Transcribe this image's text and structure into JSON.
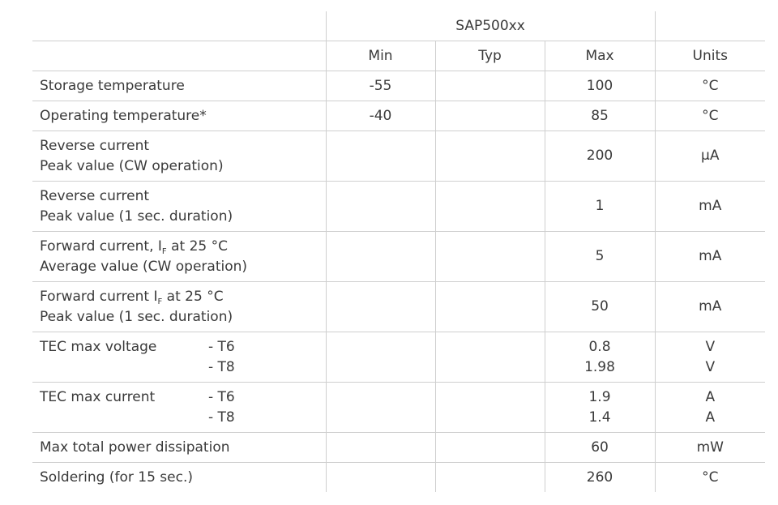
{
  "table": {
    "group_header": "SAP500xx",
    "columns": {
      "min": "Min",
      "typ": "Typ",
      "max": "Max",
      "units": "Units"
    },
    "rows": [
      {
        "param": "Storage temperature",
        "min": "-55",
        "typ": "",
        "max": "100",
        "unit": "°C"
      },
      {
        "param": "Operating temperature*",
        "min": "-40",
        "typ": "",
        "max": "85",
        "unit": "°C"
      },
      {
        "param_line1": "Reverse current",
        "param_line2": "Peak value (CW operation)",
        "min": "",
        "typ": "",
        "max": "200",
        "unit": "μA"
      },
      {
        "param_line1": "Reverse current",
        "param_line2": "Peak value (1 sec. duration)",
        "min": "",
        "typ": "",
        "max": "1",
        "unit": "mA"
      },
      {
        "param_line1_a": "Forward current, I",
        "param_line1_sub": "F",
        "param_line1_b": " at 25 °C",
        "param_line2": "Average value (CW operation)",
        "min": "",
        "typ": "",
        "max": "5",
        "unit": "mA"
      },
      {
        "param_line1_a": "Forward current I",
        "param_line1_sub": "F",
        "param_line1_b": " at 25 °C",
        "param_line2": "Peak value (1 sec. duration)",
        "min": "",
        "typ": "",
        "max": "50",
        "unit": "mA"
      },
      {
        "param": "TEC max voltage",
        "t1": "- T6",
        "t2": "- T8",
        "max1": "0.8",
        "max2": "1.98",
        "unit1": "V",
        "unit2": "V"
      },
      {
        "param": "TEC max current",
        "t1": "- T6",
        "t2": "- T8",
        "max1": "1.9",
        "max2": "1.4",
        "unit1": "A",
        "unit2": "A"
      },
      {
        "param": "Max total power dissipation",
        "min": "",
        "typ": "",
        "max": "60",
        "unit": "mW"
      },
      {
        "param": "Soldering (for 15 sec.)",
        "min": "",
        "typ": "",
        "max": "260",
        "unit": "°C"
      }
    ]
  }
}
